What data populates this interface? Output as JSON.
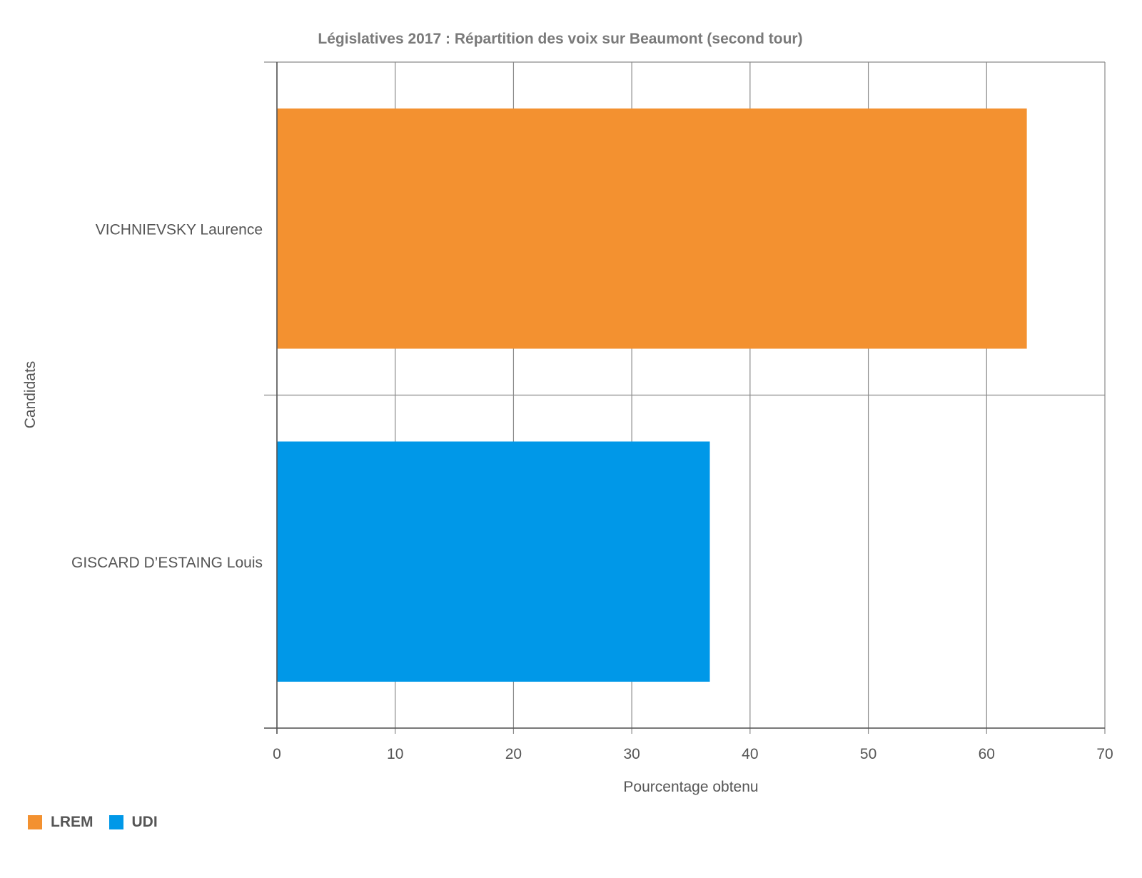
{
  "chart_data": {
    "type": "bar",
    "orientation": "horizontal",
    "title": "Législatives 2017 : Répartition des voix sur Beaumont (second tour)",
    "xlabel": "Pourcentage obtenu",
    "ylabel": "Candidats",
    "xlim": [
      0,
      70
    ],
    "xticks": [
      0,
      10,
      20,
      30,
      40,
      50,
      60,
      70
    ],
    "grid": true,
    "legend_position": "bottom-left",
    "categories": [
      "VICHNIEVSKY Laurence",
      "GISCARD D’ESTAING Louis"
    ],
    "values": [
      63.4,
      36.6
    ],
    "bar_colors": [
      "#f39130",
      "#0098e8"
    ],
    "legend": [
      {
        "label": "LREM",
        "color": "#f39130"
      },
      {
        "label": "UDI",
        "color": "#0098e8"
      }
    ]
  }
}
